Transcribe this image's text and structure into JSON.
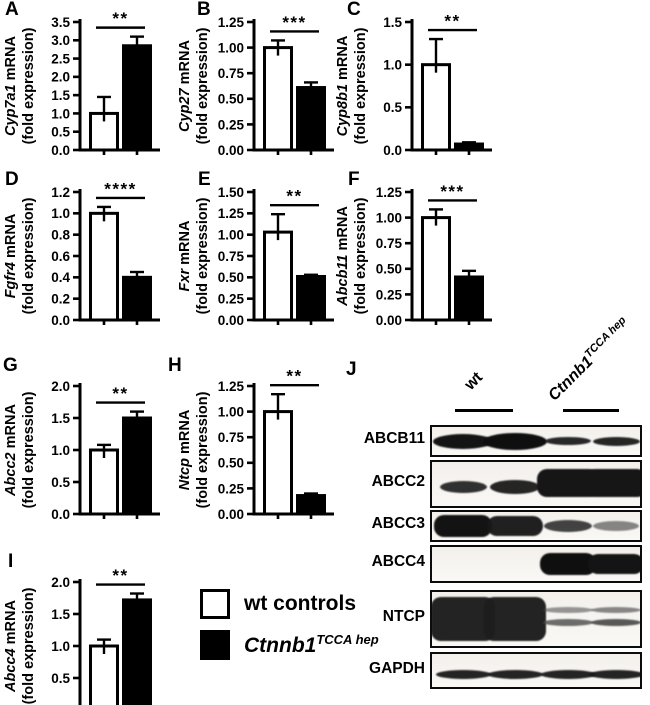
{
  "legend": {
    "items": [
      {
        "label": "wt controls",
        "swatch_color": "#ffffff"
      },
      {
        "label": "Ctnnb1",
        "label_sup": "TCCA hep",
        "swatch_color": "#000000"
      }
    ]
  },
  "chart_data": [
    {
      "panel": "A",
      "type": "bar",
      "gene": "Cyp7a1",
      "ylabel_line1": "mRNA",
      "ylabel_line2": "(fold expression)",
      "categories": [
        "wt controls",
        "Ctnnb1 TCCA hep"
      ],
      "values": [
        1.0,
        2.85
      ],
      "errors": [
        0.45,
        0.25
      ],
      "ylim": [
        0,
        3.5
      ],
      "ytick_step": 0.5,
      "decimals": 1,
      "significance": "**",
      "bar_colors": [
        "#ffffff",
        "#000000"
      ],
      "grid": false
    },
    {
      "panel": "B",
      "type": "bar",
      "gene": "Cyp27",
      "ylabel_line1": "mRNA",
      "ylabel_line2": "(fold expression)",
      "categories": [
        "wt controls",
        "Ctnnb1 TCCA hep"
      ],
      "values": [
        1.0,
        0.61
      ],
      "errors": [
        0.07,
        0.05
      ],
      "ylim": [
        0,
        1.25
      ],
      "ytick_step": 0.25,
      "decimals": 2,
      "significance": "***",
      "bar_colors": [
        "#ffffff",
        "#000000"
      ],
      "grid": false
    },
    {
      "panel": "C",
      "type": "bar",
      "gene": "Cyp8b1",
      "ylabel_line1": "mRNA",
      "ylabel_line2": "(fold expression)",
      "categories": [
        "wt controls",
        "Ctnnb1 TCCA hep"
      ],
      "values": [
        1.0,
        0.07
      ],
      "errors": [
        0.3,
        0.02
      ],
      "ylim": [
        0,
        1.5
      ],
      "ytick_step": 0.5,
      "decimals": 1,
      "significance": "**",
      "bar_colors": [
        "#ffffff",
        "#000000"
      ],
      "grid": false
    },
    {
      "panel": "D",
      "type": "bar",
      "gene": "Fgfr4",
      "ylabel_line1": "mRNA",
      "ylabel_line2": "(fold expression)",
      "categories": [
        "wt controls",
        "Ctnnb1 TCCA hep"
      ],
      "values": [
        1.0,
        0.4
      ],
      "errors": [
        0.06,
        0.05
      ],
      "ylim": [
        0,
        1.2
      ],
      "ytick_step": 0.2,
      "decimals": 1,
      "significance": "****",
      "bar_colors": [
        "#ffffff",
        "#000000"
      ],
      "grid": false
    },
    {
      "panel": "E",
      "type": "bar",
      "gene": "Fxr",
      "ylabel_line1": "mRNA",
      "ylabel_line2": "(fold expression)",
      "categories": [
        "wt controls",
        "Ctnnb1 TCCA hep"
      ],
      "values": [
        1.03,
        0.51
      ],
      "errors": [
        0.21,
        0.02
      ],
      "ylim": [
        0,
        1.5
      ],
      "ytick_step": 0.25,
      "decimals": 2,
      "significance": "**",
      "bar_colors": [
        "#ffffff",
        "#000000"
      ],
      "grid": false
    },
    {
      "panel": "F",
      "type": "bar",
      "gene": "Abcb11",
      "ylabel_line1": "mRNA",
      "ylabel_line2": "(fold expression)",
      "categories": [
        "wt controls",
        "Ctnnb1 TCCA hep"
      ],
      "values": [
        1.0,
        0.42
      ],
      "errors": [
        0.08,
        0.06
      ],
      "ylim": [
        0,
        1.25
      ],
      "ytick_step": 0.25,
      "decimals": 2,
      "significance": "***",
      "bar_colors": [
        "#ffffff",
        "#000000"
      ],
      "grid": false
    },
    {
      "panel": "G",
      "type": "bar",
      "gene": "Abcc2",
      "ylabel_line1": "mRNA",
      "ylabel_line2": "(fold expression)",
      "categories": [
        "wt controls",
        "Ctnnb1 TCCA hep"
      ],
      "values": [
        1.0,
        1.5
      ],
      "errors": [
        0.08,
        0.1
      ],
      "ylim": [
        0,
        2.0
      ],
      "ytick_step": 0.5,
      "decimals": 1,
      "significance": "**",
      "bar_colors": [
        "#ffffff",
        "#000000"
      ],
      "grid": false
    },
    {
      "panel": "H",
      "type": "bar",
      "gene": "Ntcp",
      "ylabel_line1": "mRNA",
      "ylabel_line2": "(fold expression)",
      "categories": [
        "wt controls",
        "Ctnnb1 TCCA hep"
      ],
      "values": [
        1.0,
        0.18
      ],
      "errors": [
        0.17,
        0.02
      ],
      "ylim": [
        0,
        1.25
      ],
      "ytick_step": 0.25,
      "decimals": 2,
      "significance": "**",
      "bar_colors": [
        "#ffffff",
        "#000000"
      ],
      "grid": false
    },
    {
      "panel": "I",
      "type": "bar",
      "gene": "Abcc4",
      "ylabel_line1": "mRNA",
      "ylabel_line2": "(fold expression)",
      "categories": [
        "wt controls",
        "Ctnnb1 TCCA hep"
      ],
      "values": [
        1.0,
        1.72
      ],
      "errors": [
        0.1,
        0.1
      ],
      "ylim": [
        0,
        2.0
      ],
      "ytick_step": 0.5,
      "decimals": 1,
      "significance": "**",
      "bar_colors": [
        "#ffffff",
        "#000000"
      ],
      "grid": false
    }
  ],
  "western": {
    "label": "J",
    "groups": [
      {
        "name": "wt"
      },
      {
        "name": "Ctnnb1",
        "sup": "TCCA hep"
      }
    ],
    "rows": [
      {
        "protein": "ABCB11",
        "bands": [
          {
            "lane": 0,
            "w": 60,
            "h": 15,
            "shape": "ellipse",
            "color": "#141414",
            "opacity": 1
          },
          {
            "lane": 1,
            "w": 64,
            "h": 17,
            "shape": "ellipse",
            "color": "#0f0f0f",
            "opacity": 1
          },
          {
            "lane": 2,
            "w": 46,
            "h": 8,
            "shape": "ellipse",
            "color": "#1e1e1e",
            "opacity": 0.95
          },
          {
            "lane": 3,
            "w": 47,
            "h": 9,
            "shape": "ellipse",
            "color": "#1b1b1b",
            "opacity": 0.95
          }
        ]
      },
      {
        "protein": "ABCC2",
        "bands": [
          {
            "lane": 0,
            "w": 47,
            "h": 12,
            "shape": "ellipse",
            "color": "#202020",
            "opacity": 0.92,
            "dy": 3
          },
          {
            "lane": 1,
            "w": 50,
            "h": 14,
            "shape": "ellipse",
            "color": "#1a1a1a",
            "opacity": 0.95,
            "dy": 3
          },
          {
            "lane": 2,
            "w": 62,
            "h": 28,
            "shape": "blob",
            "color": "#161616",
            "opacity": 1,
            "dy": -1
          },
          {
            "lane": 3,
            "w": 62,
            "h": 28,
            "shape": "blob",
            "color": "#161616",
            "opacity": 1,
            "dy": -1
          }
        ]
      },
      {
        "protein": "ABCC3",
        "bands": [
          {
            "lane": 0,
            "w": 58,
            "h": 22,
            "shape": "blob",
            "color": "#131313",
            "opacity": 1
          },
          {
            "lane": 1,
            "w": 56,
            "h": 20,
            "shape": "blob",
            "color": "#181818",
            "opacity": 0.96
          },
          {
            "lane": 2,
            "w": 48,
            "h": 12,
            "shape": "ellipse",
            "color": "#242424",
            "opacity": 0.85
          },
          {
            "lane": 3,
            "w": 46,
            "h": 10,
            "shape": "ellipse",
            "color": "#3a3a3a",
            "opacity": 0.6
          }
        ]
      },
      {
        "protein": "ABCC4",
        "bands": [
          null,
          null,
          {
            "lane": 2,
            "w": 56,
            "h": 22,
            "shape": "blob",
            "color": "#0f0f0f",
            "opacity": 1
          },
          {
            "lane": 3,
            "w": 56,
            "h": 20,
            "shape": "blob",
            "color": "#141414",
            "opacity": 1
          }
        ]
      },
      {
        "protein": "NTCP",
        "bands": [
          {
            "lane": 0,
            "w": 64,
            "h": 44,
            "shape": "blob",
            "color": "#1d1d1d",
            "opacity": 0.97
          },
          {
            "lane": 1,
            "w": 62,
            "h": 44,
            "shape": "blob",
            "color": "#1d1d1d",
            "opacity": 0.97
          },
          {
            "lane": 2,
            "w": 50,
            "shape": "double",
            "color": "#4a4a4a",
            "opacity": 0.8
          },
          {
            "lane": 3,
            "w": 50,
            "shape": "double",
            "color": "#3d3d3d",
            "opacity": 0.85
          }
        ]
      },
      {
        "protein": "GAPDH",
        "bands": [
          {
            "lane": 0,
            "w": 55,
            "h": 9,
            "shape": "ellipse",
            "color": "#191919",
            "opacity": 0.95,
            "dy": 4
          },
          {
            "lane": 1,
            "w": 55,
            "h": 9,
            "shape": "ellipse",
            "color": "#191919",
            "opacity": 0.95,
            "dy": 4
          },
          {
            "lane": 2,
            "w": 55,
            "h": 9,
            "shape": "ellipse",
            "color": "#191919",
            "opacity": 0.95,
            "dy": 4
          },
          {
            "lane": 3,
            "w": 55,
            "h": 9,
            "shape": "ellipse",
            "color": "#191919",
            "opacity": 0.95,
            "dy": 4
          }
        ]
      }
    ]
  }
}
